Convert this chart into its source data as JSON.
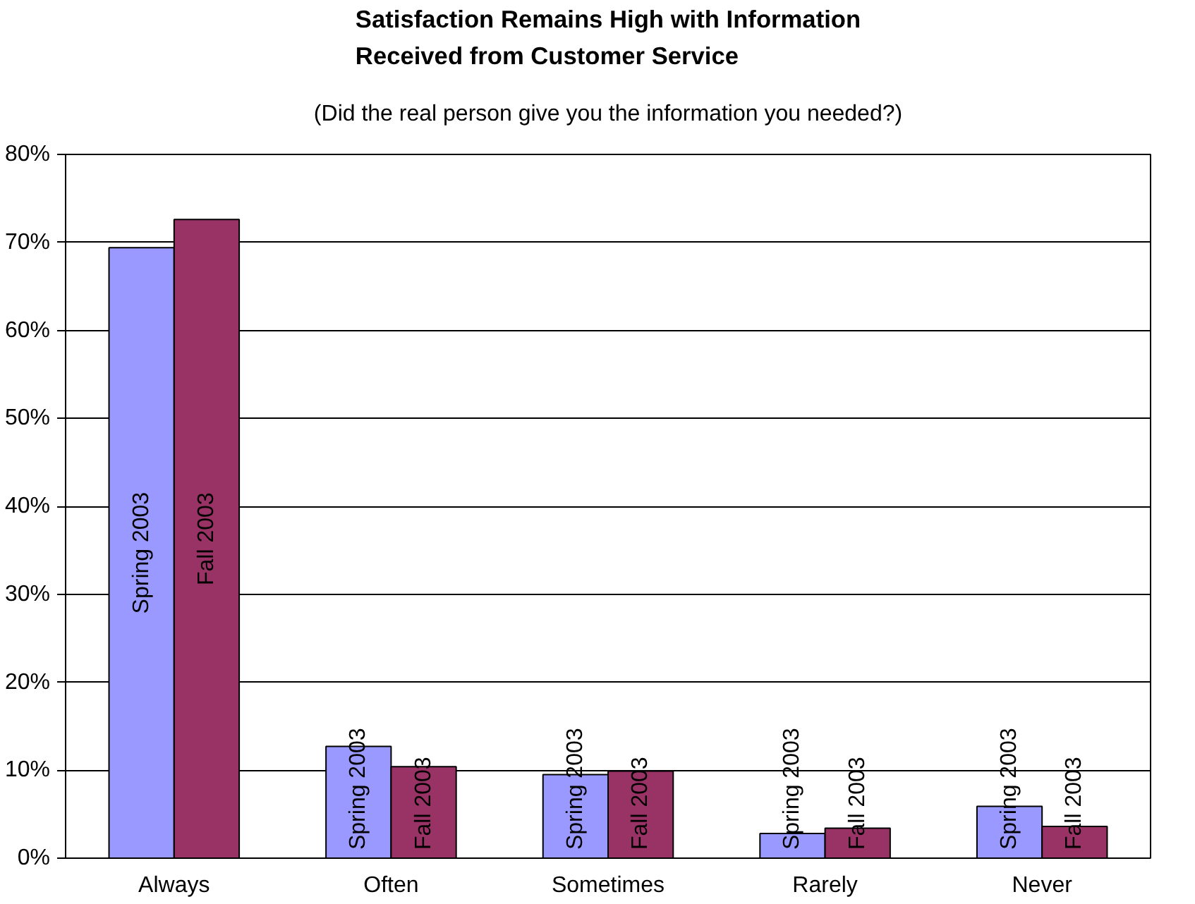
{
  "chart_data": {
    "type": "bar",
    "title": "Satisfaction Remains High with Information Received from Customer Service",
    "subtitle": "(Did the real person give you the information you needed?)",
    "categories": [
      "Always",
      "Often",
      "Sometimes",
      "Rarely",
      "Never"
    ],
    "series": [
      {
        "name": "Spring 2003",
        "color": "#9999ff",
        "values": [
          69.4,
          12.7,
          9.5,
          2.8,
          5.9
        ]
      },
      {
        "name": "Fall 2003",
        "color": "#993366",
        "values": [
          72.6,
          10.4,
          9.9,
          3.4,
          3.6
        ]
      }
    ],
    "ylim": [
      0,
      80
    ],
    "yticks": [
      {
        "value": 0,
        "label": "0%"
      },
      {
        "value": 10,
        "label": "10%"
      },
      {
        "value": 20,
        "label": "20%"
      },
      {
        "value": 30,
        "label": "30%"
      },
      {
        "value": 40,
        "label": "40%"
      },
      {
        "value": 50,
        "label": "50%"
      },
      {
        "value": 60,
        "label": "60%"
      },
      {
        "value": 70,
        "label": "70%"
      },
      {
        "value": 80,
        "label": "80%"
      }
    ],
    "grid": "y",
    "legend": false
  }
}
